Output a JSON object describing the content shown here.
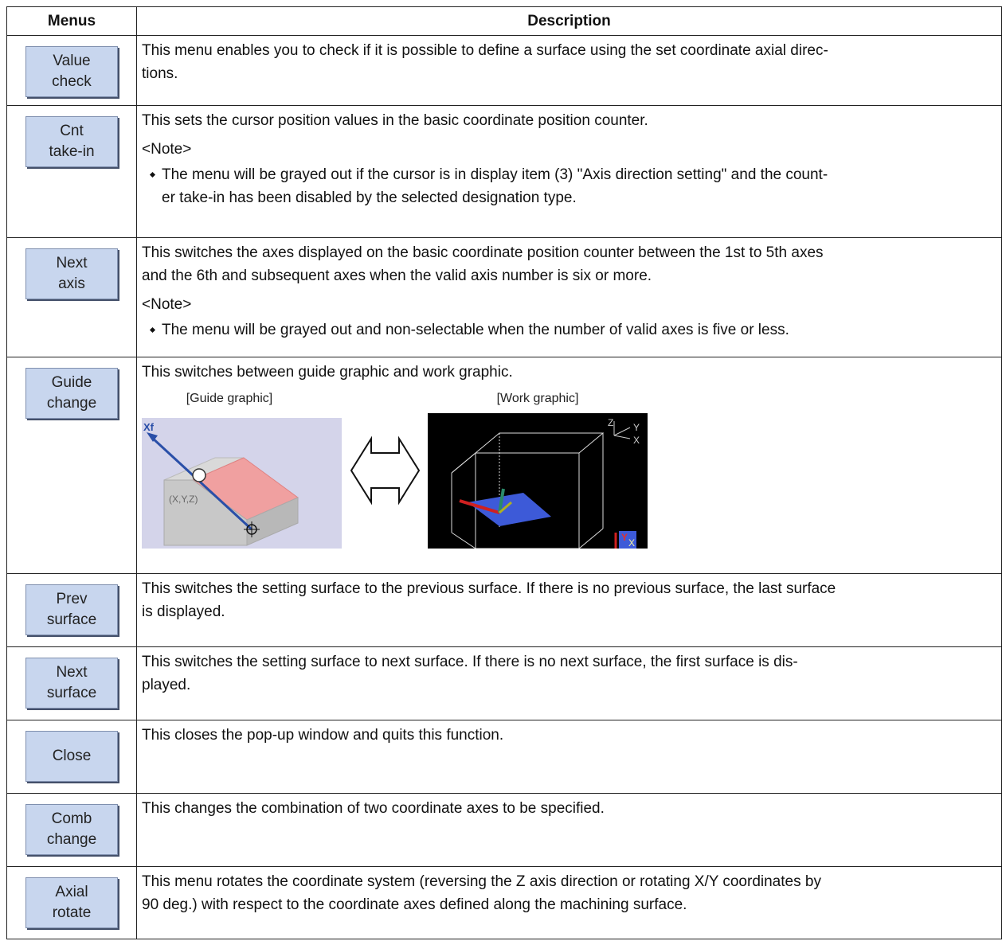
{
  "table": {
    "headers": [
      "Menus",
      "Description"
    ],
    "rows": [
      {
        "menu": [
          "Value",
          "check"
        ],
        "content": [
          {
            "paragraph": [
              "This menu enables you to check if it is possible to define a surface using the set coordinate axial direc-",
              "tions."
            ]
          }
        ]
      },
      {
        "menu": [
          "Cnt",
          "take-in"
        ],
        "content": [
          {
            "paragraph": [
              "This sets the cursor position values in the basic coordinate position counter."
            ]
          },
          {
            "note": "<Note>"
          },
          {
            "bullet": [
              "The menu will be grayed out if the cursor is in display item (3) \"Axis direction setting\" and the count-",
              "er take-in has been disabled by the selected designation type."
            ]
          }
        ]
      },
      {
        "menu": [
          "Next",
          "axis"
        ],
        "content": [
          {
            "paragraph": [
              "This switches the axes displayed on the basic coordinate position counter between the 1st to 5th axes",
              "and the 6th and subsequent axes when the valid axis number is six or more."
            ]
          },
          {
            "note": "<Note>"
          },
          {
            "bullet": [
              "The menu will be grayed out and non-selectable when the number of valid axes is five or less."
            ]
          }
        ]
      },
      {
        "menu": [
          "Guide",
          "change"
        ],
        "content": [
          {
            "paragraph": [
              "This switches between guide graphic and work graphic."
            ]
          },
          {
            "figures": {
              "guide": {
                "caption": "[Guide graphic]",
                "axis": "Xf",
                "point": "(X,Y,Z)"
              },
              "work": {
                "caption": "[Work graphic]",
                "axes": [
                  "Z",
                  "Y",
                  "X"
                ],
                "corner": [
                  "Y",
                  "X"
                ]
              }
            }
          }
        ]
      },
      {
        "menu": [
          "Prev",
          "surface"
        ],
        "content": [
          {
            "paragraph": [
              "This switches the setting surface to the previous surface. If there is no previous surface, the last surface",
              "is displayed."
            ]
          }
        ]
      },
      {
        "menu": [
          "Next",
          "surface"
        ],
        "content": [
          {
            "paragraph": [
              "This switches the setting surface to next surface. If there is no next surface, the first surface is dis-",
              "played."
            ]
          }
        ]
      },
      {
        "menu": [
          "Close"
        ],
        "content": [
          {
            "paragraph": [
              "This closes the pop-up window and quits this function."
            ]
          }
        ]
      },
      {
        "menu": [
          "Comb",
          "change"
        ],
        "content": [
          {
            "paragraph": [
              "This changes the combination of two coordinate axes to be specified."
            ]
          }
        ]
      },
      {
        "menu": [
          "Axial",
          "rotate"
        ],
        "content": [
          {
            "paragraph": [
              "This menu rotates the coordinate system (reversing the Z axis direction or rotating X/Y coordinates by",
              "90 deg.) with respect to the coordinate axes defined along the machining surface."
            ]
          }
        ]
      }
    ]
  }
}
